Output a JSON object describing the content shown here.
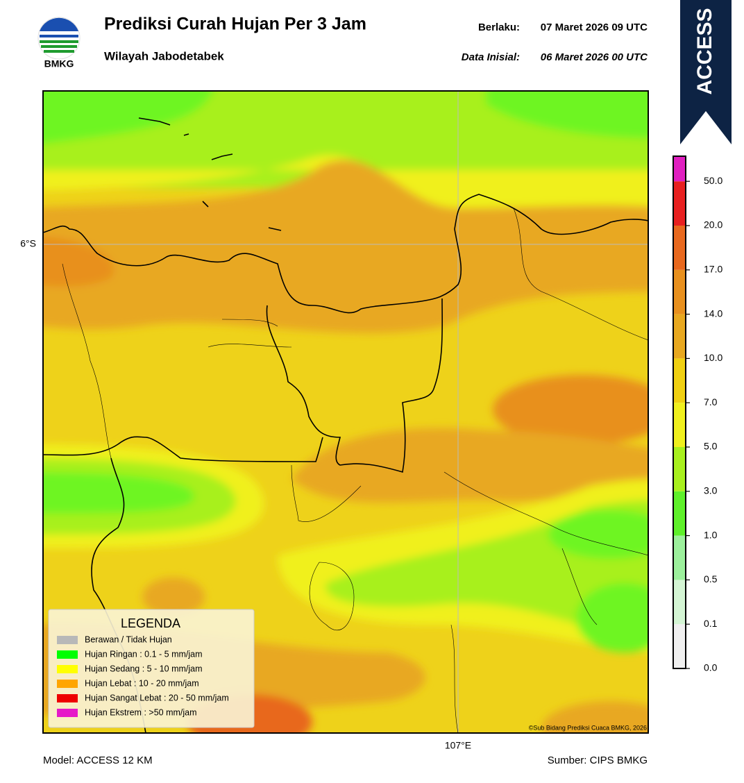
{
  "header": {
    "title": "Prediksi Curah Hujan Per 3 Jam",
    "subtitle": "Wilayah Jabodetabek",
    "valid_label": "Berlaku:",
    "valid_time": "07 Maret 2026 09 UTC",
    "init_label": "Data Inisial:",
    "init_time": "06 Maret 2026 00 UTC"
  },
  "logo": {
    "text": "BMKG"
  },
  "banner": {
    "text": "ACCESS"
  },
  "map": {
    "lat_label": "6°S",
    "lon_label": "107°E",
    "credit": "©Sub Bidang Prediksi Cuaca BMKG, 2026"
  },
  "legend": {
    "title": "LEGENDA",
    "items": [
      {
        "label": "Berawan / Tidak Hujan",
        "color": "#b8b8b8"
      },
      {
        "label": "Hujan Ringan : 0.1 - 5 mm/jam",
        "color": "#00ff00"
      },
      {
        "label": "Hujan Sedang : 5 - 10 mm/jam",
        "color": "#ffff00"
      },
      {
        "label": "Hujan Lebat : 10 - 20 mm/jam",
        "color": "#ffa500"
      },
      {
        "label": "Hujan Sangat Lebat : 20 - 50 mm/jam",
        "color": "#ee0000"
      },
      {
        "label": "Hujan Ekstrem : >50 mm/jam",
        "color": "#e619c8"
      }
    ]
  },
  "colorbar": {
    "ticks": [
      "0.0",
      "0.1",
      "0.5",
      "1.0",
      "3.0",
      "5.0",
      "7.0",
      "10.0",
      "14.0",
      "17.0",
      "20.0",
      "50.0"
    ],
    "colors": [
      "#f0f0f0",
      "#d4f5d4",
      "#9cf09c",
      "#5ef02a",
      "#a8f01e",
      "#f0f01e",
      "#f0d012",
      "#e8a820",
      "#e8901e",
      "#e8681e",
      "#e82020",
      "#e020c0"
    ]
  },
  "footer": {
    "model": "Model: ACCESS 12 KM",
    "source": "Sumber: CIPS BMKG"
  }
}
